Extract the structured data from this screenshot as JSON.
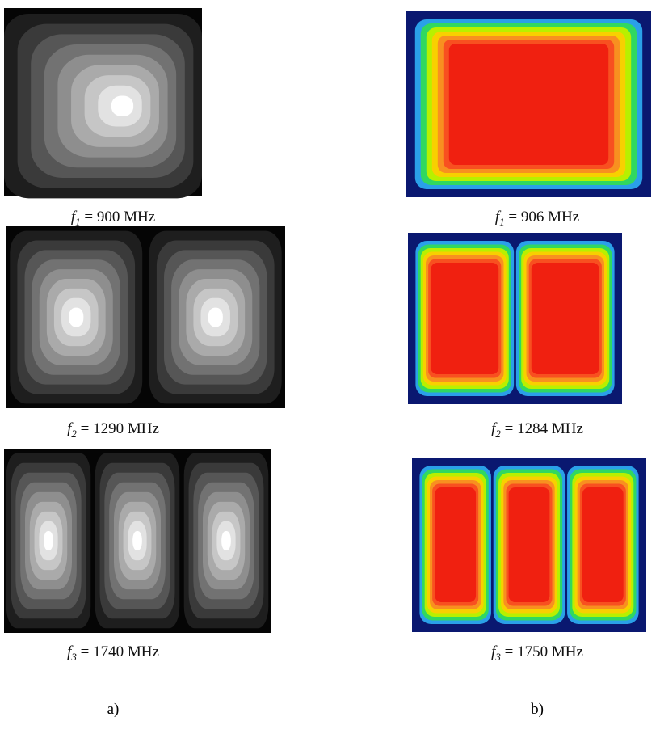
{
  "panels": [
    {
      "left": {
        "symbol": "f",
        "subscript": "1",
        "text": "= 900 MHz"
      },
      "right": {
        "symbol": "f",
        "subscript": "1",
        "text": "= 906 MHz"
      }
    },
    {
      "left": {
        "symbol": "f",
        "subscript": "2",
        "text": "= 1290 MHz"
      },
      "right": {
        "symbol": "f",
        "subscript": "2",
        "text": "= 1284 MHz"
      }
    },
    {
      "left": {
        "symbol": "f",
        "subscript": "3",
        "text": "= 1740 MHz"
      },
      "right": {
        "symbol": "f",
        "subscript": "3",
        "text": "= 1750 MHz"
      }
    }
  ],
  "column_labels": [
    "a)",
    "b)"
  ]
}
